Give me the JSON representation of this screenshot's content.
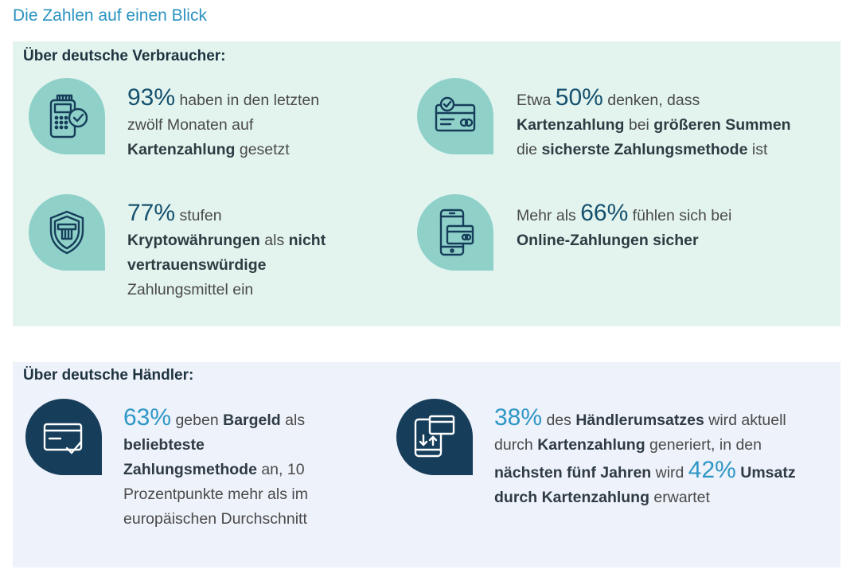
{
  "page": {
    "title": "Die Zahlen auf einen Blick"
  },
  "colors": {
    "title": "#2a93c0",
    "mint_panel": "#e3f4ef",
    "mint_icon": "#8fd1c9",
    "navy_icon": "#163d5a",
    "merchant_panel": "#eef2fa",
    "stat_teal": "#16516e",
    "stat_blue": "#2f97c6"
  },
  "consumers": {
    "heading": "Über deutsche Verbraucher:",
    "stats": [
      {
        "icon": "card-terminal-check-icon",
        "value": "93%",
        "t1": " haben in den letzten",
        "t2": "zwölf Monaten auf",
        "t3b": "Kartenzahlung",
        "t3": " gesetzt"
      },
      {
        "icon": "credit-card-check-icon",
        "pre": "Etwa ",
        "value": "50%",
        "t1": " denken, dass",
        "t2b": "Kartenzahlung",
        "t2": " bei ",
        "t2b2": "größeren Summen",
        "t3": "die ",
        "t3b": "sicherste Zahlungsmethode",
        "t3c": " ist"
      },
      {
        "icon": "shield-card-icon",
        "value": "77%",
        "t1": " stufen",
        "t2b": "Kryptowährungen",
        "t2": " als ",
        "t2b2": "nicht",
        "t3b": "vertrauenswürdige",
        "t4": "Zahlungsmittel ein"
      },
      {
        "icon": "smartphone-card-icon",
        "pre": "Mehr als ",
        "value": "66%",
        "t1": " fühlen sich bei",
        "t2b": "Online-Zahlungen sicher"
      }
    ]
  },
  "merchants": {
    "heading": "Über deutsche Händler:",
    "stats": [
      {
        "icon": "credit-card-check-icon",
        "value": "63%",
        "t1": " geben ",
        "t1b": "Bargeld",
        "t1c": " als",
        "t2b": "beliebteste",
        "t3b": "Zahlungsmethode",
        "t3": " an, 10",
        "t4": "Prozentpunkte mehr als im",
        "t5": "europäischen Durchschnitt"
      },
      {
        "icon": "tablet-card-transfer-icon",
        "value": "38%",
        "t1": " des ",
        "t1b": "Händlerumsatzes",
        "t1c": " wird aktuell",
        "t2": "durch ",
        "t2b": "Kartenzahlung",
        "t2c": " generiert, in den",
        "t3b": "nächsten fünf Jahren",
        "t3": " wird ",
        "value2": "42%",
        "t3c": " ",
        "t3b2": "Umsatz",
        "t4b": "durch Kartenzahlung",
        "t4": " erwartet"
      }
    ]
  }
}
